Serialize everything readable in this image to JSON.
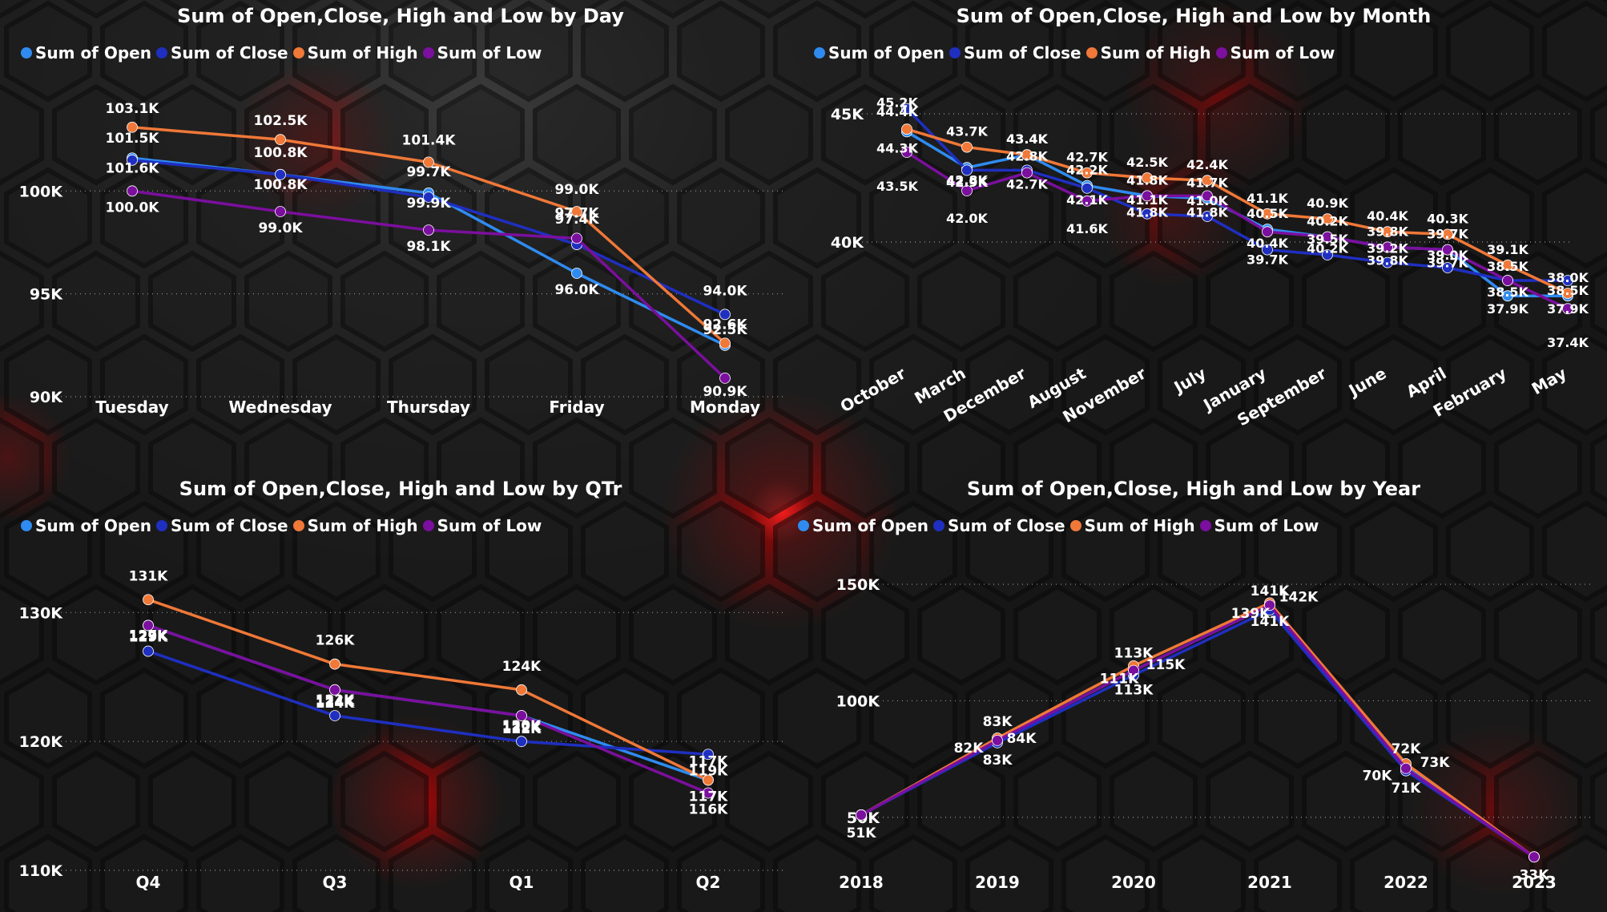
{
  "colors": {
    "open": "#2F8BF0",
    "close": "#1F2FC0",
    "high": "#F07838",
    "low": "#7B0F9E"
  },
  "chart_data": [
    {
      "type": "line",
      "title": "Sum of Open,Close, High and Low by Day",
      "legend": [
        "Sum of Open",
        "Sum of Close",
        "Sum of High",
        "Sum of Low"
      ],
      "categories": [
        "Tuesday",
        "Wednesday",
        "Thursday",
        "Friday",
        "Monday"
      ],
      "series": [
        {
          "name": "Sum of Open",
          "values": [
            101.6,
            100.8,
            99.9,
            96.0,
            92.5
          ],
          "labels": [
            "101.6K",
            "100.8K",
            "99.9K",
            "96.0K",
            "92.5K"
          ]
        },
        {
          "name": "Sum of Close",
          "values": [
            101.5,
            100.8,
            99.7,
            97.4,
            94.0
          ],
          "labels": [
            "101.5K",
            "100.8K",
            "99.7K",
            "97.4K",
            "94.0K"
          ]
        },
        {
          "name": "Sum of High",
          "values": [
            103.1,
            102.5,
            101.4,
            99.0,
            92.6
          ],
          "labels": [
            "103.1K",
            "102.5K",
            "101.4K",
            "99.0K",
            "92.6K"
          ]
        },
        {
          "name": "Sum of Low",
          "values": [
            100.0,
            99.0,
            98.1,
            97.7,
            90.9
          ],
          "labels": [
            "100.0K",
            "99.0K",
            "98.1K",
            "97.7K",
            "90.9K"
          ]
        }
      ],
      "yticks": [
        "90K",
        "95K",
        "100K"
      ],
      "ylim": [
        90,
        105
      ],
      "legend_position": "top-left"
    },
    {
      "type": "line",
      "title": "Sum of Open,Close, High and Low by Month",
      "legend": [
        "Sum of Open",
        "Sum of Close",
        "Sum of High",
        "Sum of Low"
      ],
      "categories": [
        "October",
        "March",
        "December",
        "August",
        "November",
        "July",
        "January",
        "September",
        "June",
        "April",
        "February",
        "May"
      ],
      "series": [
        {
          "name": "Sum of Open",
          "values": [
            44.3,
            42.9,
            43.4,
            42.2,
            41.8,
            41.7,
            40.5,
            40.2,
            39.8,
            39.7,
            37.9,
            37.9
          ],
          "labels": [
            "44.3K",
            "42.9K",
            "43.4K",
            "42.2K",
            "41.8K",
            "41.7K",
            "40.5K",
            "40.2K",
            "39.8K",
            "39.7K",
            "37.9K",
            "37.9K"
          ]
        },
        {
          "name": "Sum of Close",
          "values": [
            45.2,
            42.8,
            42.8,
            42.1,
            41.1,
            41.0,
            39.7,
            39.5,
            39.2,
            39.0,
            38.5,
            38.5
          ],
          "labels": [
            "45.2K",
            "42.8K",
            "42.8K",
            "42.1K",
            "41.1K",
            "41.0K",
            "39.7K",
            "39.5K",
            "39.2K",
            "39.0K",
            "38.5K",
            "38.5K"
          ]
        },
        {
          "name": "Sum of High",
          "values": [
            44.4,
            43.7,
            43.4,
            42.7,
            42.5,
            42.4,
            41.1,
            40.9,
            40.4,
            40.3,
            39.1,
            38.0
          ],
          "labels": [
            "44.4K",
            "43.7K",
            "43.4K",
            "42.7K",
            "42.5K",
            "42.4K",
            "41.1K",
            "40.9K",
            "40.4K",
            "40.3K",
            "39.1K",
            "38.0K"
          ]
        },
        {
          "name": "Sum of Low",
          "values": [
            43.5,
            42.0,
            42.7,
            41.6,
            41.8,
            41.8,
            40.4,
            40.2,
            39.8,
            39.7,
            38.5,
            37.4
          ],
          "labels": [
            "43.5K",
            "42.0K",
            "42.7K",
            "41.6K",
            "41.8K",
            "41.8K",
            "40.4K",
            "40.2K",
            "39.8K",
            "39.7K",
            "38.5K",
            "37.4K"
          ]
        }
      ],
      "yticks": [
        "40K",
        "45K"
      ],
      "ylim": [
        36,
        46
      ],
      "legend_position": "top-left"
    },
    {
      "type": "line",
      "title": "Sum of Open,Close, High and Low by QTr",
      "legend": [
        "Sum of Open",
        "Sum of Close",
        "Sum of High",
        "Sum of Low"
      ],
      "categories": [
        "Q4",
        "Q3",
        "Q1",
        "Q2"
      ],
      "series": [
        {
          "name": "Sum of Open",
          "values": [
            129,
            124,
            122,
            117
          ],
          "labels": [
            "129K",
            "124K",
            "122K",
            "117K"
          ]
        },
        {
          "name": "Sum of Close",
          "values": [
            127,
            122,
            120,
            119
          ],
          "labels": [
            "127K",
            "122K",
            "120K",
            "119K"
          ]
        },
        {
          "name": "Sum of High",
          "values": [
            131,
            126,
            124,
            117
          ],
          "labels": [
            "131K",
            "126K",
            "124K",
            "117K"
          ]
        },
        {
          "name": "Sum of Low",
          "values": [
            129,
            124,
            122,
            116
          ],
          "labels": [
            "129K",
            "124K",
            "122K",
            "116K"
          ]
        }
      ],
      "yticks": [
        "110K",
        "120K",
        "130K"
      ],
      "ylim": [
        110,
        134
      ],
      "legend_position": "top-left"
    },
    {
      "type": "line",
      "title": "Sum of Open,Close, High and Low by Year",
      "legend": [
        "Sum of Open",
        "Sum of Close",
        "Sum of High",
        "Sum of Low"
      ],
      "categories": [
        "2018",
        "2019",
        "2020",
        "2021",
        "2022",
        "2023"
      ],
      "series": [
        {
          "name": "Sum of Open",
          "values": [
            51,
            83,
            113,
            141,
            72,
            33
          ],
          "labels": [
            "",
            "83K",
            "113K",
            "141K",
            "72K",
            "33K"
          ]
        },
        {
          "name": "Sum of Close",
          "values": [
            51,
            82,
            111,
            139,
            70,
            33
          ],
          "labels": [
            "",
            "82K",
            "111K",
            "139K",
            "70K",
            ""
          ]
        },
        {
          "name": "Sum of High",
          "values": [
            51,
            84,
            115,
            142,
            73,
            33
          ],
          "labels": [
            "",
            "84K",
            "115K",
            "142K",
            "73K",
            ""
          ]
        },
        {
          "name": "Sum of Low",
          "values": [
            51,
            83,
            113,
            141,
            71,
            33
          ],
          "labels": [
            "51K",
            "83K",
            "113K",
            "141K",
            "71K",
            ""
          ]
        }
      ],
      "yticks": [
        "50K",
        "100K",
        "150K"
      ],
      "ylim": [
        30,
        160
      ],
      "legend_position": "top-left"
    }
  ]
}
